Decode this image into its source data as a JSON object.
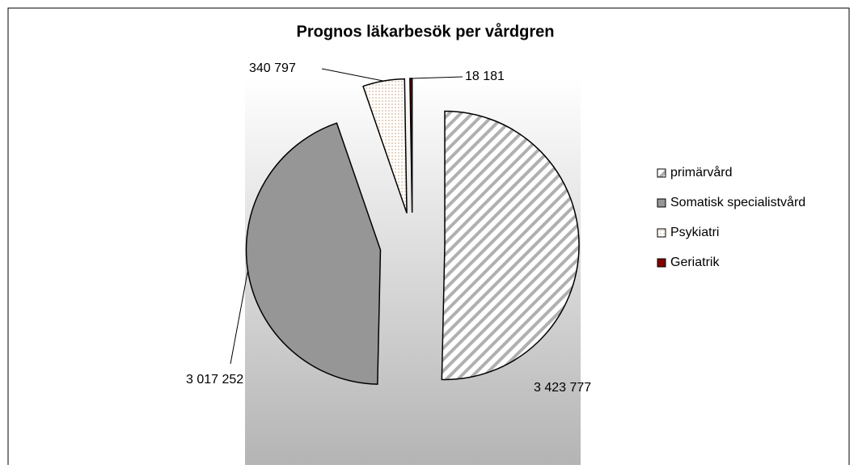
{
  "chart_data": {
    "type": "pie",
    "title": "Prognos läkarbesök per vårdgren",
    "categories": [
      "primärvård",
      "Somatisk specialistvård",
      "Psykiatri",
      "Geriatrik"
    ],
    "values": [
      3423777,
      3017252,
      340797,
      18181
    ],
    "value_labels": [
      "3 423 777",
      "3 017 252",
      "340 797",
      "18 181"
    ],
    "colors": [
      "#b0b0b0",
      "#969696",
      "#e8d4c0",
      "#800000"
    ],
    "patterns": [
      "stripes",
      "solid",
      "dots",
      "solid"
    ],
    "legend": "right"
  }
}
